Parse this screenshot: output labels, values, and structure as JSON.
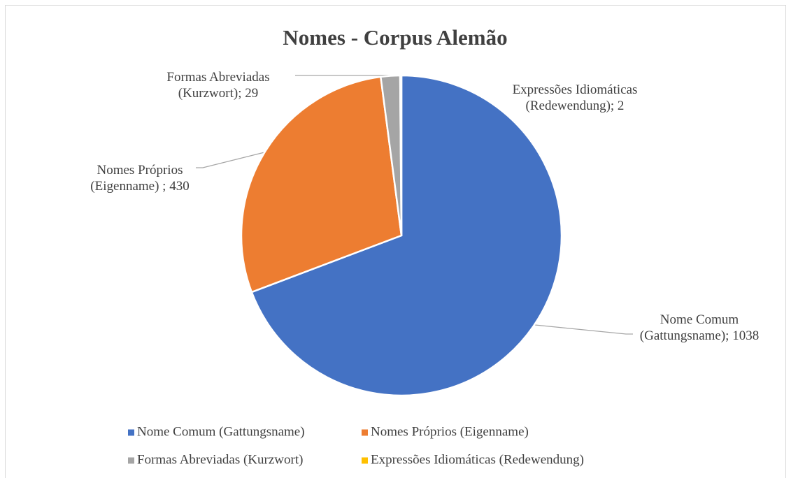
{
  "chart_data": {
    "type": "pie",
    "title": "Nomes - Corpus Alemão",
    "categories": [
      "Nome Comum (Gattungsname)",
      "Nomes Próprios (Eigenname)",
      "Formas Abreviadas (Kurzwort)",
      "Expressões Idiomáticas (Redewendung)"
    ],
    "values": [
      1038,
      430,
      29,
      2
    ],
    "value_labels": [
      "Nome Comum (Gattungsname); 1038",
      "Nomes Próprios (Eigenname) ; 430",
      "Formas Abreviadas (Kurzwort); 29",
      "Expressões Idiomáticas (Redewendung); 2"
    ],
    "colors": [
      "#4472c4",
      "#ed7d31",
      "#a5a5a5",
      "#ffc000"
    ],
    "legend": "bottom"
  }
}
